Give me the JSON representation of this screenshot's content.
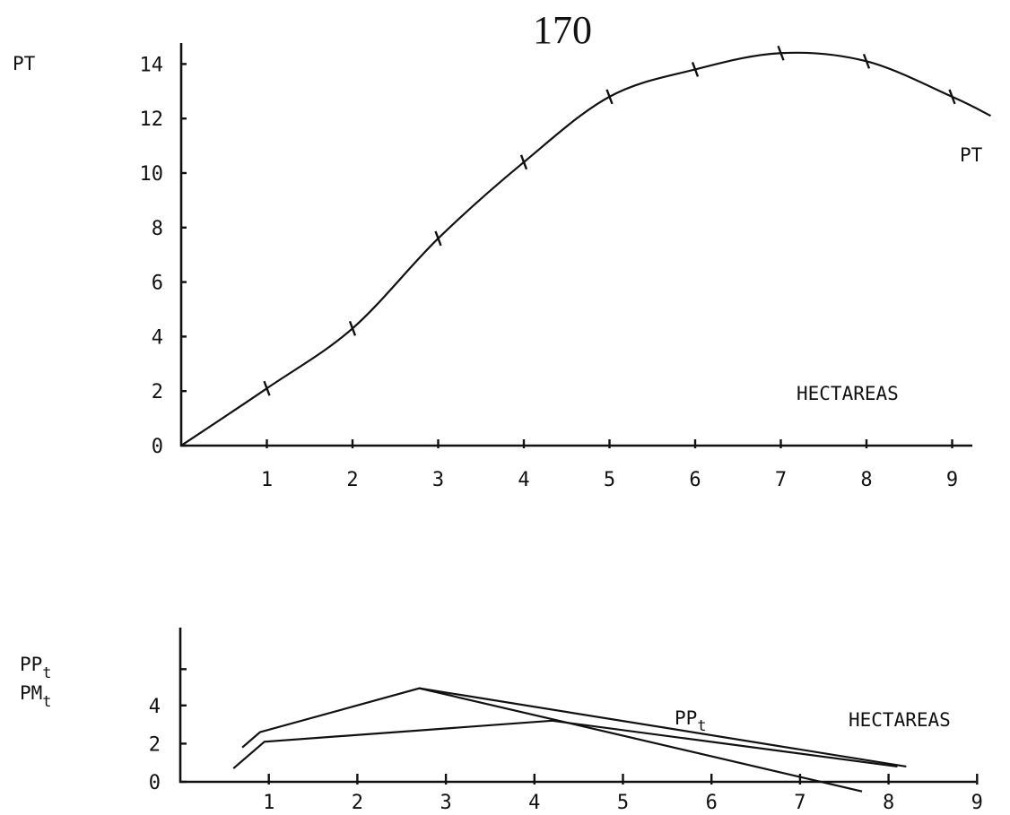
{
  "page_number": "170",
  "chart_data": [
    {
      "type": "line",
      "ylabel": "PT",
      "xlabel": "HECTAREAS",
      "x_ticks": [
        "1",
        "2",
        "3",
        "4",
        "5",
        "6",
        "7",
        "8",
        "9"
      ],
      "y_ticks": [
        "0",
        "2",
        "4",
        "6",
        "8",
        "10",
        "12",
        "14"
      ],
      "xlim": [
        0,
        9.5
      ],
      "ylim": [
        0,
        14.8
      ],
      "series": [
        {
          "name": "PT",
          "x": [
            0,
            1,
            2,
            3,
            4,
            5,
            6,
            7,
            8,
            9,
            9.45
          ],
          "y": [
            0,
            2.1,
            4.3,
            7.6,
            10.4,
            12.8,
            13.8,
            14.4,
            14.1,
            12.8,
            12.1
          ]
        }
      ]
    },
    {
      "type": "line",
      "ylabel_lines": [
        {
          "base": "PP",
          "sub": "t"
        },
        {
          "base": "PM",
          "sub": "t"
        }
      ],
      "xlabel": "HECTAREAS",
      "x_ticks": [
        "1",
        "2",
        "3",
        "4",
        "5",
        "6",
        "7",
        "8",
        "9"
      ],
      "y_ticks": [
        "0",
        "2",
        "4"
      ],
      "xlim": [
        0,
        9.2
      ],
      "ylim": [
        0,
        6
      ],
      "series": [
        {
          "name_base": "PP",
          "name_sub": "t",
          "x": [
            0.7,
            0.9,
            2.7,
            8.2
          ],
          "y": [
            1.8,
            2.6,
            4.9,
            0.8
          ]
        },
        {
          "x": [
            0.6,
            0.95,
            4.2,
            8.1
          ],
          "y": [
            0.7,
            2.1,
            3.2,
            0.8
          ]
        }
      ],
      "extra_segment": {
        "x": [
          2.7,
          7.7
        ],
        "y": [
          4.9,
          -0.5
        ]
      }
    }
  ]
}
